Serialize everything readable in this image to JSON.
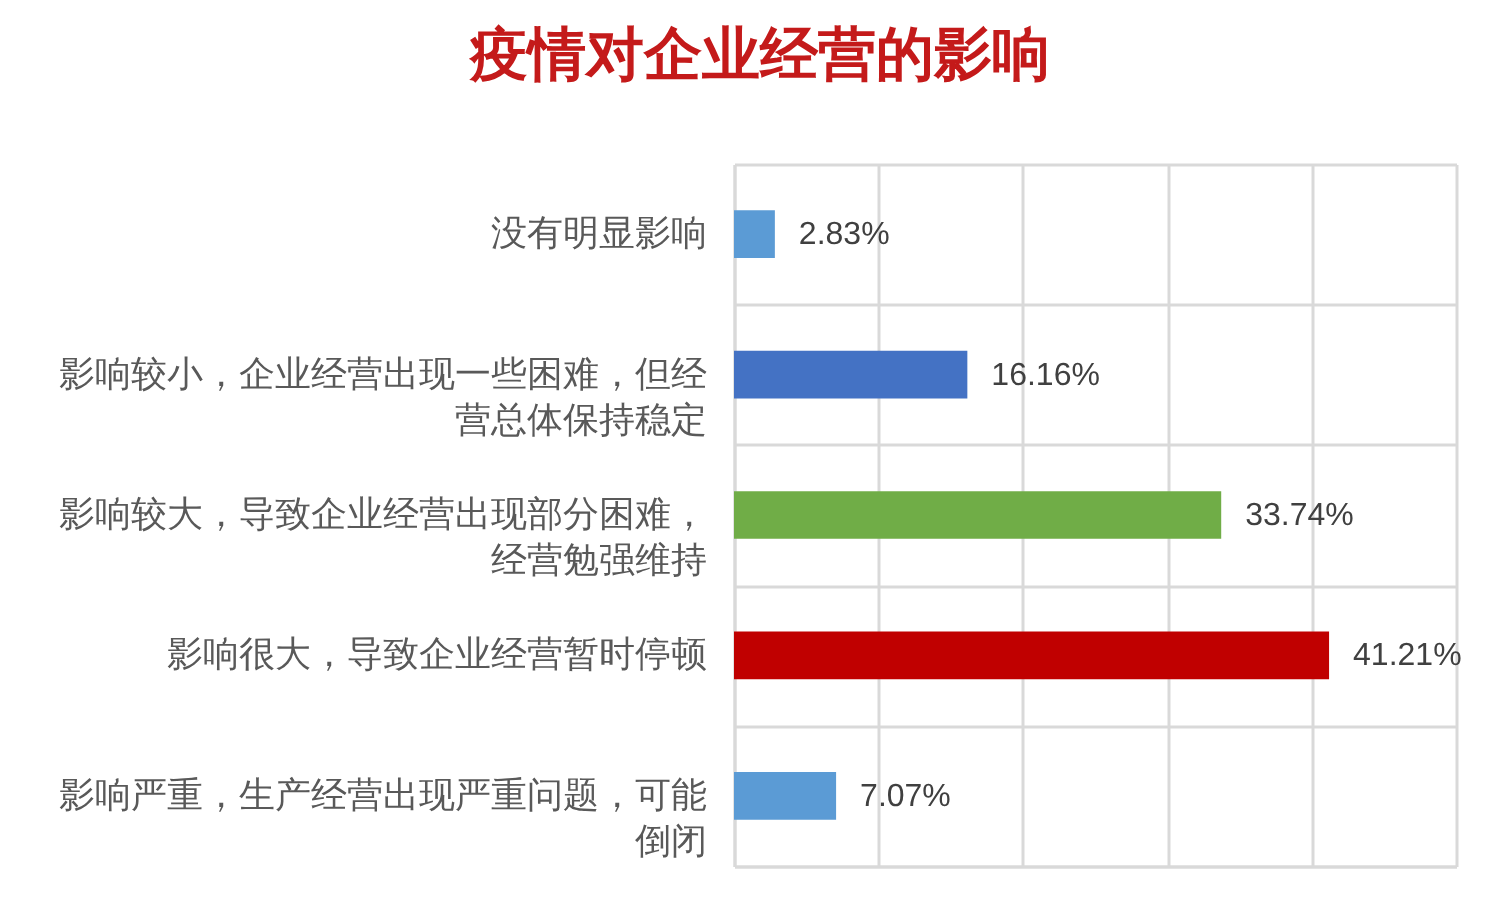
{
  "chart_data": {
    "type": "bar",
    "orientation": "horizontal",
    "title": "疫情对企业经营的影响",
    "categories": [
      "没有明显影响",
      "影响较小，企业经营出现一些困难，但经营总体保持稳定",
      "影响较大，导致企业经营出现部分困难，经营勉强维持",
      "影响很大，导致企业经营暂时停顿",
      "影响严重，生产经营出现严重问题，可能倒闭"
    ],
    "values": [
      2.83,
      16.16,
      33.74,
      41.21,
      7.07
    ],
    "colors": [
      "#5b9bd5",
      "#4472c4",
      "#70ad47",
      "#c00000",
      "#5b9bd5"
    ],
    "value_labels": [
      "2.83%",
      "16.16%",
      "33.74%",
      "41.21%",
      "7.07%"
    ],
    "xlim": [
      0,
      50
    ],
    "xticks": [
      {
        "value": 0,
        "label": null
      },
      {
        "value": 10,
        "label": null
      },
      {
        "value": 20,
        "label": null
      },
      {
        "value": 30,
        "label": null
      },
      {
        "value": 40,
        "label": null
      },
      {
        "value": 50,
        "label": null
      }
    ],
    "grid": true,
    "tick_labels": "y"
  }
}
